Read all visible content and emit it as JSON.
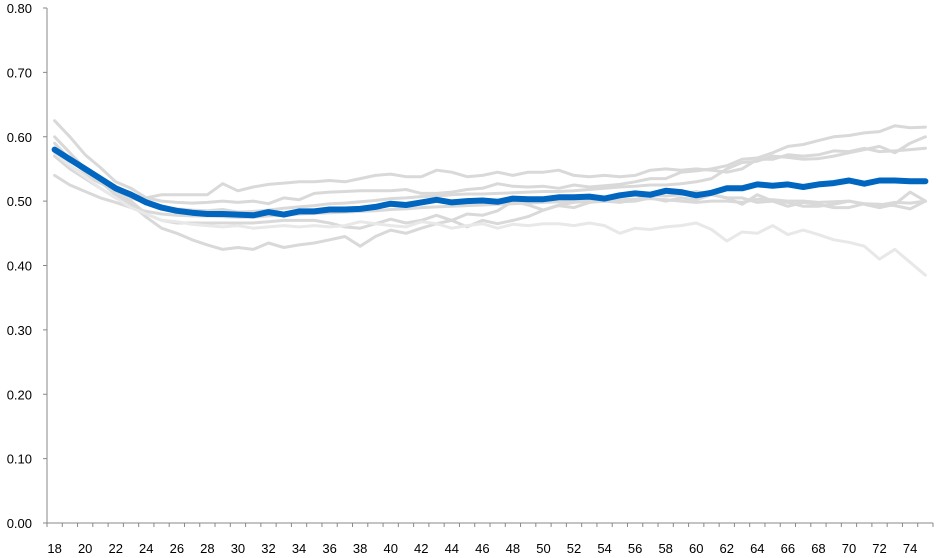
{
  "chart_data": {
    "type": "line",
    "title": "",
    "xlabel": "",
    "ylabel": "",
    "x": [
      18,
      19,
      20,
      21,
      22,
      23,
      24,
      25,
      26,
      27,
      28,
      29,
      30,
      31,
      32,
      33,
      34,
      35,
      36,
      37,
      38,
      39,
      40,
      41,
      42,
      43,
      44,
      45,
      46,
      47,
      48,
      49,
      50,
      51,
      52,
      53,
      54,
      55,
      56,
      57,
      58,
      59,
      60,
      61,
      62,
      63,
      64,
      65,
      66,
      67,
      68,
      69,
      70,
      71,
      72,
      73,
      74,
      75
    ],
    "x_tick_labels": [
      "18",
      "20",
      "22",
      "24",
      "26",
      "28",
      "30",
      "32",
      "34",
      "36",
      "38",
      "40",
      "42",
      "44",
      "46",
      "48",
      "50",
      "52",
      "54",
      "56",
      "58",
      "60",
      "62",
      "64",
      "66",
      "68",
      "70",
      "72",
      "74"
    ],
    "y_tick_labels": [
      "0.00",
      "0.10",
      "0.20",
      "0.30",
      "0.40",
      "0.50",
      "0.60",
      "0.70",
      "0.80"
    ],
    "ylim": [
      0,
      0.8
    ],
    "grid": false,
    "legend": "none",
    "colors": {
      "highlight": "#0066BF",
      "background_series": "#D9D9D9",
      "background_series_light": "#E8E8E8",
      "axis": "#888888"
    },
    "series": [
      {
        "highlight": true,
        "values": [
          0.58,
          0.565,
          0.55,
          0.535,
          0.52,
          0.51,
          0.498,
          0.49,
          0.485,
          0.482,
          0.48,
          0.48,
          0.479,
          0.478,
          0.483,
          0.479,
          0.484,
          0.484,
          0.487,
          0.487,
          0.488,
          0.491,
          0.496,
          0.494,
          0.498,
          0.502,
          0.498,
          0.5,
          0.501,
          0.499,
          0.504,
          0.503,
          0.503,
          0.506,
          0.506,
          0.507,
          0.504,
          0.509,
          0.512,
          0.51,
          0.516,
          0.514,
          0.509,
          0.513,
          0.52,
          0.52,
          0.526,
          0.524,
          0.526,
          0.522,
          0.526,
          0.528,
          0.532,
          0.527,
          0.532,
          0.532,
          0.531,
          0.531
        ]
      },
      {
        "values": [
          0.625,
          0.6,
          0.572,
          0.552,
          0.53,
          0.52,
          0.505,
          0.5,
          0.498,
          0.497,
          0.498,
          0.5,
          0.498,
          0.5,
          0.496,
          0.505,
          0.502,
          0.512,
          0.514,
          0.515,
          0.516,
          0.516,
          0.516,
          0.518,
          0.512,
          0.512,
          0.514,
          0.518,
          0.52,
          0.527,
          0.523,
          0.522,
          0.523,
          0.52,
          0.525,
          0.522,
          0.524,
          0.526,
          0.53,
          0.535,
          0.535,
          0.545,
          0.547,
          0.55,
          0.555,
          0.565,
          0.567,
          0.575,
          0.585,
          0.588,
          0.594,
          0.6,
          0.602,
          0.606,
          0.608,
          0.617,
          0.614,
          0.615
        ]
      },
      {
        "values": [
          0.59,
          0.565,
          0.545,
          0.53,
          0.518,
          0.51,
          0.505,
          0.51,
          0.51,
          0.51,
          0.51,
          0.527,
          0.516,
          0.522,
          0.526,
          0.528,
          0.53,
          0.53,
          0.532,
          0.53,
          0.535,
          0.54,
          0.542,
          0.538,
          0.538,
          0.548,
          0.545,
          0.538,
          0.54,
          0.545,
          0.54,
          0.545,
          0.545,
          0.548,
          0.54,
          0.538,
          0.54,
          0.538,
          0.54,
          0.548,
          0.55,
          0.548,
          0.55,
          0.548,
          0.545,
          0.55,
          0.565,
          0.565,
          0.572,
          0.57,
          0.572,
          0.578,
          0.577,
          0.582,
          0.577,
          0.578,
          0.58,
          0.582
        ]
      },
      {
        "values": [
          0.58,
          0.555,
          0.54,
          0.528,
          0.515,
          0.505,
          0.498,
          0.49,
          0.488,
          0.486,
          0.485,
          0.487,
          0.483,
          0.484,
          0.486,
          0.489,
          0.491,
          0.493,
          0.496,
          0.497,
          0.499,
          0.501,
          0.504,
          0.505,
          0.507,
          0.508,
          0.51,
          0.511,
          0.511,
          0.512,
          0.513,
          0.514,
          0.515,
          0.515,
          0.516,
          0.518,
          0.52,
          0.522,
          0.523,
          0.525,
          0.525,
          0.527,
          0.53,
          0.535,
          0.55,
          0.56,
          0.562,
          0.57,
          0.568,
          0.565,
          0.566,
          0.57,
          0.575,
          0.58,
          0.585,
          0.575,
          0.59,
          0.6
        ]
      },
      {
        "values": [
          0.54,
          0.525,
          0.515,
          0.505,
          0.498,
          0.49,
          0.484,
          0.48,
          0.478,
          0.477,
          0.477,
          0.476,
          0.475,
          0.475,
          0.477,
          0.478,
          0.48,
          0.481,
          0.482,
          0.483,
          0.484,
          0.485,
          0.487,
          0.488,
          0.49,
          0.491,
          0.492,
          0.493,
          0.494,
          0.495,
          0.496,
          0.497,
          0.498,
          0.499,
          0.5,
          0.501,
          0.5,
          0.502,
          0.503,
          0.504,
          0.502,
          0.5,
          0.498,
          0.5,
          0.5,
          0.498,
          0.503,
          0.502,
          0.5,
          0.5,
          0.498,
          0.499,
          0.5,
          0.496,
          0.494,
          0.498,
          0.497,
          0.5
        ]
      },
      {
        "values": [
          0.6,
          0.575,
          0.55,
          0.53,
          0.51,
          0.5,
          0.48,
          0.47,
          0.466,
          0.466,
          0.466,
          0.466,
          0.466,
          0.466,
          0.468,
          0.47,
          0.47,
          0.47,
          0.466,
          0.46,
          0.458,
          0.465,
          0.472,
          0.466,
          0.47,
          0.478,
          0.47,
          0.48,
          0.478,
          0.485,
          0.5,
          0.494,
          0.486,
          0.494,
          0.498,
          0.5,
          0.505,
          0.499,
          0.5,
          0.505,
          0.5,
          0.505,
          0.502,
          0.51,
          0.505,
          0.495,
          0.51,
          0.5,
          0.498,
          0.492,
          0.492,
          0.495,
          0.5,
          0.495,
          0.49,
          0.495,
          0.514,
          0.5
        ]
      },
      {
        "values": [
          0.57,
          0.55,
          0.535,
          0.52,
          0.505,
          0.495,
          0.475,
          0.458,
          0.45,
          0.44,
          0.432,
          0.425,
          0.428,
          0.425,
          0.435,
          0.428,
          0.432,
          0.435,
          0.44,
          0.445,
          0.43,
          0.445,
          0.455,
          0.45,
          0.458,
          0.465,
          0.47,
          0.46,
          0.47,
          0.465,
          0.47,
          0.476,
          0.486,
          0.493,
          0.49,
          0.498,
          0.5,
          0.498,
          0.502,
          0.51,
          0.508,
          0.51,
          0.515,
          0.51,
          0.505,
          0.505,
          0.498,
          0.5,
          0.492,
          0.498,
          0.495,
          0.49,
          0.49,
          0.496,
          0.495,
          0.493,
          0.488,
          0.5
        ]
      },
      {
        "light": true,
        "values": [
          0.575,
          0.555,
          0.538,
          0.52,
          0.505,
          0.49,
          0.48,
          0.47,
          0.468,
          0.464,
          0.462,
          0.46,
          0.462,
          0.458,
          0.46,
          0.462,
          0.46,
          0.462,
          0.46,
          0.462,
          0.468,
          0.465,
          0.462,
          0.46,
          0.468,
          0.465,
          0.458,
          0.462,
          0.465,
          0.458,
          0.464,
          0.462,
          0.465,
          0.465,
          0.462,
          0.466,
          0.462,
          0.45,
          0.458,
          0.456,
          0.46,
          0.462,
          0.466,
          0.456,
          0.438,
          0.452,
          0.45,
          0.462,
          0.448,
          0.455,
          0.448,
          0.44,
          0.436,
          0.43,
          0.41,
          0.425,
          0.405,
          0.385
        ]
      }
    ]
  }
}
